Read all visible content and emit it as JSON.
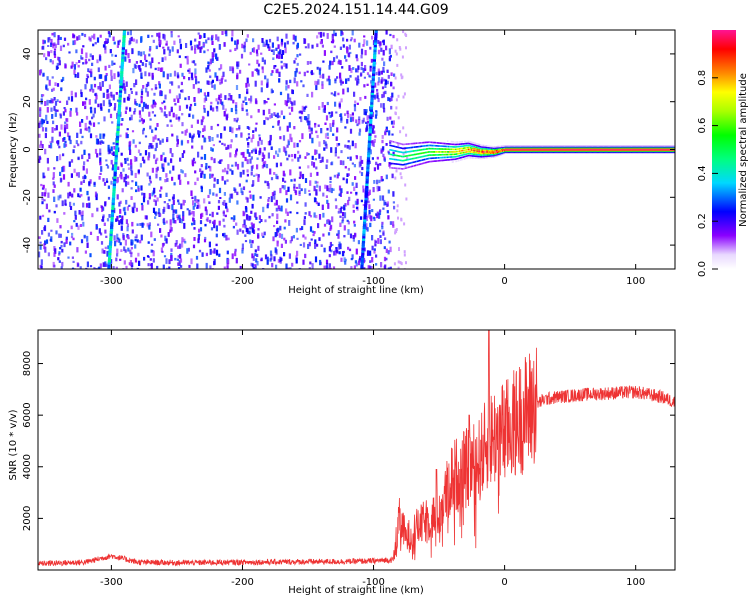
{
  "title": "C2E5.2024.151.14.44.G09",
  "chart_data": [
    {
      "type": "heatmap",
      "xlabel": "Height of straight line (km)",
      "ylabel": "Frequency (Hz)",
      "xlim": [
        -356,
        130
      ],
      "ylim": [
        -50,
        50
      ],
      "xticks": [
        -300,
        -200,
        -100,
        0,
        100
      ],
      "yticks": [
        -40,
        -20,
        0,
        20,
        40
      ],
      "noise_region_x": [
        -356,
        -85
      ],
      "noise_amplitude_approx": 0.25,
      "stripes": [
        {
          "x_at_freq_minus50": -302,
          "x_at_freq_plus50": -290,
          "amplitude_approx": 0.3
        },
        {
          "x_at_freq_minus50": -109,
          "x_at_freq_plus50": -98,
          "amplitude_approx": 0.25
        }
      ],
      "carrier": {
        "x": [
          -88,
          -78,
          -68,
          -58,
          -48,
          -38,
          -28,
          -18,
          -8,
          0,
          130
        ],
        "freq": [
          -2,
          -3,
          -2,
          -1,
          -1,
          -1,
          0,
          -1,
          -1,
          0,
          0
        ],
        "amplitude": [
          0.45,
          0.5,
          0.55,
          0.6,
          0.65,
          0.75,
          0.85,
          0.9,
          0.95,
          1.0,
          1.0
        ]
      },
      "colorbar": {
        "label": "Normalized spectral amplitude",
        "range": [
          0,
          1
        ],
        "ticks": [
          "0.0",
          "0.2",
          "0.4",
          "0.6",
          "0.8"
        ]
      }
    },
    {
      "type": "line",
      "xlabel": "Height of straight line (km)",
      "ylabel": "SNR (10 * v/v)",
      "xlim": [
        -356,
        130
      ],
      "ylim": [
        0,
        9300
      ],
      "xticks": [
        -300,
        -200,
        -100,
        0,
        100
      ],
      "yticks": [
        2000,
        4000,
        6000,
        8000
      ],
      "series": [
        {
          "color": "#ee3333",
          "x": [
            -356,
            -320,
            -300,
            -280,
            -250,
            -200,
            -150,
            -120,
            -100,
            -85,
            -80,
            -75,
            -70,
            -60,
            -50,
            -40,
            -30,
            -20,
            -12,
            -5,
            0,
            10,
            20,
            30,
            40,
            60,
            80,
            100,
            120,
            130
          ],
          "y": [
            250,
            300,
            550,
            300,
            280,
            300,
            320,
            330,
            350,
            400,
            2000,
            1200,
            1500,
            1900,
            2200,
            3600,
            3900,
            4200,
            5000,
            5300,
            5300,
            5800,
            6300,
            6600,
            6700,
            6800,
            6850,
            6900,
            6700,
            6500
          ],
          "peaks": [
            {
              "x": -12,
              "y": 9300
            },
            {
              "x": -27,
              "y": 6000
            },
            {
              "x": -52,
              "y": 3900
            }
          ]
        }
      ]
    }
  ]
}
